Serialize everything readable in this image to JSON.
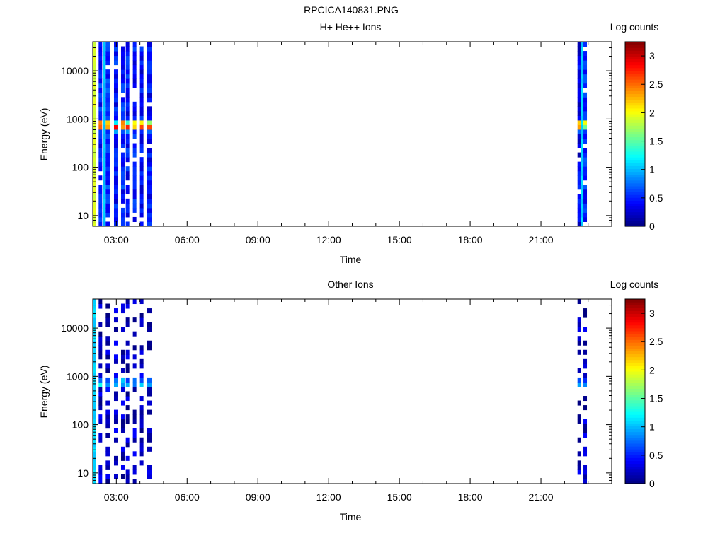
{
  "figure_title": "RPCICA140831.PNG",
  "colors": {
    "colormap": "jet",
    "background": "#ffffff",
    "axes": "#000000"
  },
  "chart_data": [
    {
      "type": "heatmap",
      "title": "H+ He++ Ions",
      "xlabel": "Time",
      "ylabel": "Energy (eV)",
      "x_unit": "hours UT",
      "xlim": [
        2.0,
        24.0
      ],
      "ylim": [
        6,
        40000
      ],
      "y_scale": "log",
      "x_ticks": [
        3,
        6,
        9,
        12,
        15,
        18,
        21
      ],
      "x_tick_labels": [
        "03:00",
        "06:00",
        "09:00",
        "12:00",
        "15:00",
        "18:00",
        "21:00"
      ],
      "y_ticks": [
        10,
        100,
        1000,
        10000
      ],
      "y_tick_labels": [
        "10",
        "100",
        "1000",
        "10000"
      ],
      "colorbar": {
        "label": "Log counts",
        "range": [
          0,
          3.25
        ],
        "ticks": [
          0,
          0.5,
          1,
          1.5,
          2,
          2.5,
          3
        ],
        "tick_labels": [
          "0",
          "0.5",
          "1",
          "1.5",
          "2",
          "2.5",
          "3"
        ]
      },
      "data_intervals": [
        [
          2.0,
          4.55
        ],
        [
          22.55,
          23.9
        ]
      ],
      "time_columns": [
        {
          "t0": 2.0,
          "t1": 2.14,
          "profile": "uniform",
          "level": 1.9
        },
        {
          "t0": 2.25,
          "t1": 2.4,
          "profile": "peak",
          "peak_ev": 750,
          "peak": 3.1,
          "base": 0.5
        },
        {
          "t0": 2.45,
          "t1": 2.55,
          "profile": "uniform",
          "level": 1.05
        },
        {
          "t0": 2.55,
          "t1": 2.72,
          "profile": "peak",
          "peak_ev": 750,
          "peak": 3.0,
          "base": 0.55
        },
        {
          "t0": 2.9,
          "t1": 3.05,
          "profile": "peak",
          "peak_ev": 700,
          "peak": 2.9,
          "base": 0.45
        },
        {
          "t0": 3.2,
          "t1": 3.35,
          "profile": "peak",
          "peak_ev": 750,
          "peak": 3.1,
          "base": 0.5
        },
        {
          "t0": 3.4,
          "t1": 3.55,
          "profile": "peak",
          "peak_ev": 700,
          "peak": 2.8,
          "base": 0.45
        },
        {
          "t0": 3.7,
          "t1": 3.85,
          "profile": "peak",
          "peak_ev": 750,
          "peak": 2.9,
          "base": 0.45
        },
        {
          "t0": 4.0,
          "t1": 4.15,
          "profile": "peak",
          "peak_ev": 750,
          "peak": 3.0,
          "base": 0.4
        },
        {
          "t0": 4.3,
          "t1": 4.5,
          "profile": "peak",
          "peak_ev": 720,
          "peak": 3.0,
          "base": 0.4
        },
        {
          "t0": 22.55,
          "t1": 22.7,
          "profile": "peak",
          "peak_ev": 750,
          "peak": 3.1,
          "base": 0.35
        },
        {
          "t0": 22.7,
          "t1": 22.78,
          "profile": "uniform",
          "level": 1.1
        },
        {
          "t0": 22.8,
          "t1": 22.95,
          "profile": "peak",
          "peak_ev": 800,
          "peak": 2.2,
          "base": 0.5
        }
      ]
    },
    {
      "type": "heatmap",
      "title": "Other Ions",
      "xlabel": "Time",
      "ylabel": "Energy (eV)",
      "x_unit": "hours UT",
      "xlim": [
        2.0,
        24.0
      ],
      "ylim": [
        6,
        40000
      ],
      "y_scale": "log",
      "x_ticks": [
        3,
        6,
        9,
        12,
        15,
        18,
        21
      ],
      "x_tick_labels": [
        "03:00",
        "06:00",
        "09:00",
        "12:00",
        "15:00",
        "18:00",
        "21:00"
      ],
      "y_ticks": [
        10,
        100,
        1000,
        10000
      ],
      "y_tick_labels": [
        "10",
        "100",
        "1000",
        "10000"
      ],
      "colorbar": {
        "label": "Log counts",
        "range": [
          0,
          3.25
        ],
        "ticks": [
          0,
          0.5,
          1,
          1.5,
          2,
          2.5,
          3
        ],
        "tick_labels": [
          "0",
          "0.5",
          "1",
          "1.5",
          "2",
          "2.5",
          "3"
        ]
      },
      "data_intervals": [
        [
          2.0,
          4.55
        ],
        [
          22.55,
          23.9
        ]
      ],
      "time_columns": [
        {
          "t0": 2.0,
          "t1": 2.14,
          "profile": "uniform",
          "level": 1.1
        },
        {
          "t0": 2.25,
          "t1": 2.4,
          "profile": "sparse",
          "peak_ev": 750,
          "peak": 1.3,
          "base": 0.2
        },
        {
          "t0": 2.55,
          "t1": 2.72,
          "profile": "sparse",
          "peak_ev": 750,
          "peak": 1.2,
          "base": 0.2
        },
        {
          "t0": 2.9,
          "t1": 3.05,
          "profile": "sparse",
          "peak_ev": 750,
          "peak": 1.1,
          "base": 0.2
        },
        {
          "t0": 3.2,
          "t1": 3.35,
          "profile": "sparse",
          "peak_ev": 750,
          "peak": 1.2,
          "base": 0.2
        },
        {
          "t0": 3.4,
          "t1": 3.55,
          "profile": "sparse",
          "peak_ev": 750,
          "peak": 1.1,
          "base": 0.2
        },
        {
          "t0": 3.7,
          "t1": 3.85,
          "profile": "sparse",
          "peak_ev": 750,
          "peak": 1.0,
          "base": 0.2
        },
        {
          "t0": 4.0,
          "t1": 4.15,
          "profile": "sparse",
          "peak_ev": 750,
          "peak": 1.1,
          "base": 0.15
        },
        {
          "t0": 4.3,
          "t1": 4.5,
          "profile": "sparse",
          "peak_ev": 750,
          "peak": 1.1,
          "base": 0.15
        },
        {
          "t0": 22.55,
          "t1": 22.7,
          "profile": "sparse",
          "peak_ev": 750,
          "peak": 0.9,
          "base": 0.2
        },
        {
          "t0": 22.8,
          "t1": 22.95,
          "profile": "sparse",
          "peak_ev": 750,
          "peak": 0.8,
          "base": 0.2
        }
      ]
    }
  ]
}
